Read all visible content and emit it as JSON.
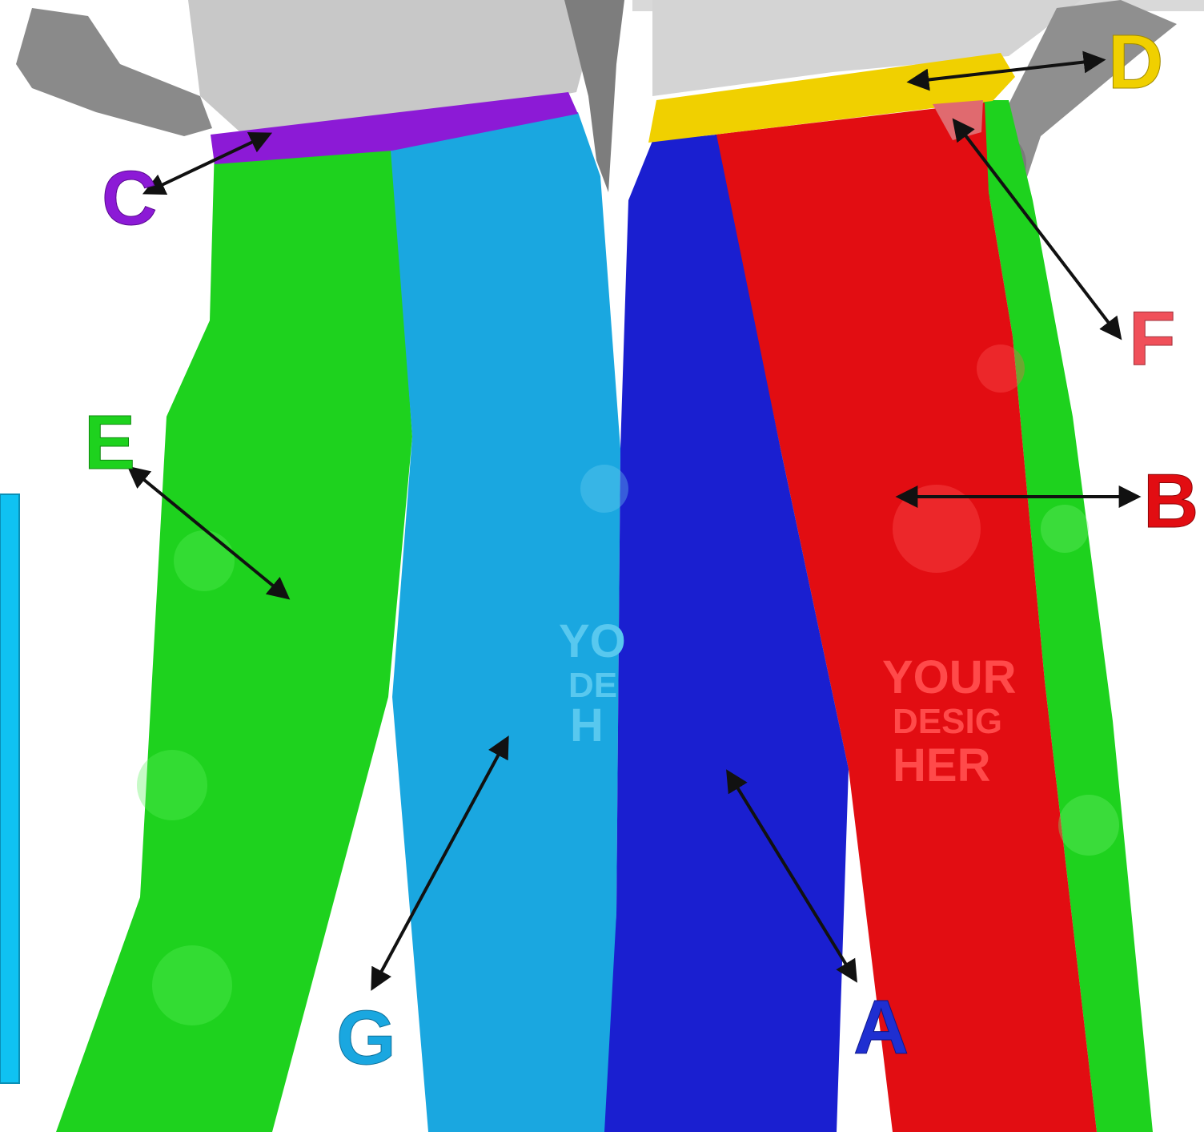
{
  "diagram": {
    "panels": [
      {
        "id": "A",
        "label": "A",
        "color": "#1f2fd1"
      },
      {
        "id": "B",
        "label": "B",
        "color": "#e20d12"
      },
      {
        "id": "C",
        "label": "C",
        "color": "#8c1ad6"
      },
      {
        "id": "D",
        "label": "D",
        "color": "#f0d000"
      },
      {
        "id": "E",
        "label": "E",
        "color": "#1ed21e"
      },
      {
        "id": "F",
        "label": "F",
        "color": "#f0505a"
      },
      {
        "id": "G",
        "label": "G",
        "color": "#1aa7e0"
      }
    ],
    "placeholder_left": [
      "YO",
      "DE",
      "H"
    ],
    "placeholder_right": [
      "YOUR",
      "DESIG",
      "HER"
    ]
  }
}
